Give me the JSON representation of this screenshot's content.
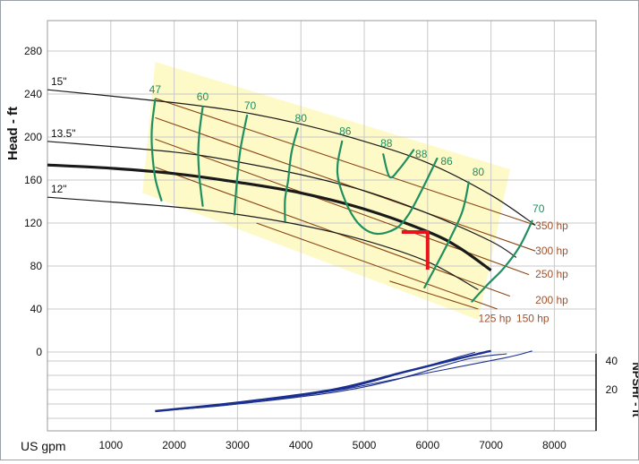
{
  "chart_data": {
    "type": "line",
    "title": "",
    "xlabel": "US gpm",
    "ylabel": "Head - ft",
    "y2label": "NPSHr - ft",
    "xlim": [
      0,
      8500
    ],
    "ylim": [
      -20,
      300
    ],
    "x_ticks": [
      1000,
      2000,
      3000,
      4000,
      5000,
      6000,
      7000,
      8000
    ],
    "y_ticks": [
      0,
      40,
      80,
      120,
      160,
      200,
      240,
      280
    ],
    "y2_ticks": [
      20,
      40
    ],
    "grid": true,
    "impeller_curves": [
      {
        "name": "15\"",
        "points": [
          [
            0,
            244
          ],
          [
            2000,
            232
          ],
          [
            3000,
            224
          ],
          [
            4000,
            212
          ],
          [
            5000,
            196
          ],
          [
            6000,
            176
          ],
          [
            7000,
            146
          ],
          [
            7700,
            118
          ]
        ]
      },
      {
        "name": "13.5\"",
        "points": [
          [
            0,
            196
          ],
          [
            2000,
            186
          ],
          [
            3000,
            177
          ],
          [
            4000,
            165
          ],
          [
            5000,
            150
          ],
          [
            6000,
            129
          ],
          [
            7000,
            103
          ],
          [
            7400,
            88
          ]
        ]
      },
      {
        "name": "",
        "points": [
          [
            0,
            174
          ],
          [
            1000,
            171
          ],
          [
            2000,
            166
          ],
          [
            3000,
            158
          ],
          [
            4000,
            148
          ],
          [
            5000,
            133
          ],
          [
            6000,
            112
          ],
          [
            6500,
            97
          ],
          [
            7000,
            76
          ]
        ]
      },
      {
        "name": "12\"",
        "points": [
          [
            0,
            144
          ],
          [
            2000,
            135
          ],
          [
            3000,
            128
          ],
          [
            4000,
            118
          ],
          [
            5000,
            104
          ],
          [
            6000,
            84
          ],
          [
            6800,
            58
          ]
        ]
      }
    ],
    "power_lines": [
      {
        "name": "350 hp",
        "points": [
          [
            1700,
            236
          ],
          [
            7700,
            118
          ]
        ]
      },
      {
        "name": "300 hp",
        "points": [
          [
            1700,
            218
          ],
          [
            7700,
            94
          ]
        ]
      },
      {
        "name": "250 hp",
        "points": [
          [
            1700,
            198
          ],
          [
            7600,
            72
          ]
        ]
      },
      {
        "name": "200 hp",
        "points": [
          [
            1700,
            172
          ],
          [
            7300,
            52
          ]
        ]
      },
      {
        "name": "150 hp",
        "points": [
          [
            3300,
            120
          ],
          [
            7100,
            40
          ]
        ]
      },
      {
        "name": "125 hp",
        "points": [
          [
            5400,
            66
          ],
          [
            6800,
            40
          ]
        ]
      }
    ],
    "power_labels": [
      {
        "text": "350 hp",
        "x": 7700,
        "y": 114
      },
      {
        "text": "300 hp",
        "x": 7700,
        "y": 91
      },
      {
        "text": "250 hp",
        "x": 7700,
        "y": 69
      },
      {
        "text": "200 hp",
        "x": 7700,
        "y": 45
      },
      {
        "text": "150 hp",
        "x": 7400,
        "y": 28
      },
      {
        "text": "125 hp",
        "x": 6800,
        "y": 28
      }
    ],
    "efficiency_contours": [
      {
        "name": "47",
        "points": [
          [
            1700,
            235
          ],
          [
            1650,
            210
          ],
          [
            1650,
            190
          ],
          [
            1700,
            162
          ],
          [
            1800,
            141
          ]
        ]
      },
      {
        "name": "60",
        "points": [
          [
            2450,
            228
          ],
          [
            2400,
            205
          ],
          [
            2380,
            185
          ],
          [
            2400,
            162
          ],
          [
            2450,
            136
          ]
        ]
      },
      {
        "name": "70",
        "points": [
          [
            3150,
            220
          ],
          [
            3050,
            190
          ],
          [
            3000,
            165
          ],
          [
            2950,
            128
          ]
        ]
      },
      {
        "name": "80",
        "points": [
          [
            3950,
            208
          ],
          [
            3850,
            185
          ],
          [
            3800,
            160
          ],
          [
            3750,
            142
          ],
          [
            3750,
            122
          ]
        ]
      },
      {
        "name": "86",
        "points": [
          [
            4650,
            196
          ],
          [
            4580,
            175
          ],
          [
            4600,
            158
          ],
          [
            4750,
            134
          ],
          [
            4950,
            117
          ],
          [
            5200,
            110
          ],
          [
            5500,
            115
          ],
          [
            5700,
            128
          ],
          [
            5920,
            152
          ],
          [
            6150,
            180
          ]
        ]
      },
      {
        "name": "88",
        "points": [
          [
            5300,
            184
          ],
          [
            5400,
            163
          ],
          [
            5550,
            170
          ],
          [
            5780,
            188
          ]
        ]
      },
      {
        "name": "80",
        "points": [
          [
            6650,
            158
          ],
          [
            6550,
            131
          ],
          [
            6350,
            105
          ],
          [
            6150,
            82
          ],
          [
            5950,
            60
          ]
        ]
      },
      {
        "name": "70",
        "points": [
          [
            7650,
            122
          ],
          [
            7450,
            98
          ],
          [
            7200,
            78
          ],
          [
            6950,
            63
          ],
          [
            6700,
            47
          ]
        ]
      }
    ],
    "efficiency_labels": [
      {
        "text": "47",
        "x": 1700,
        "y": 241
      },
      {
        "text": "60",
        "x": 2450,
        "y": 234
      },
      {
        "text": "70",
        "x": 3200,
        "y": 226
      },
      {
        "text": "80",
        "x": 4000,
        "y": 214
      },
      {
        "text": "86",
        "x": 4700,
        "y": 202
      },
      {
        "text": "88",
        "x": 5350,
        "y": 191
      },
      {
        "text": "88",
        "x": 5900,
        "y": 181
      },
      {
        "text": "86",
        "x": 6300,
        "y": 174
      },
      {
        "text": "80",
        "x": 6800,
        "y": 164
      },
      {
        "text": "70",
        "x": 7750,
        "y": 130
      }
    ],
    "operating_region": [
      [
        1700,
        270
      ],
      [
        7300,
        170
      ],
      [
        6800,
        30
      ],
      [
        1500,
        148
      ]
    ],
    "operating_point": {
      "x": 6000,
      "y": 110
    },
    "npshr_curves": [
      {
        "points": [
          [
            1700,
            5
          ],
          [
            3000,
            11
          ],
          [
            4500,
            20
          ],
          [
            5600,
            32
          ],
          [
            6800,
            45
          ],
          [
            7000,
            47
          ]
        ]
      },
      {
        "points": [
          [
            1700,
            5
          ],
          [
            3000,
            11
          ],
          [
            4500,
            19
          ],
          [
            5800,
            30
          ],
          [
            7200,
            42
          ],
          [
            7650,
            47
          ]
        ]
      },
      {
        "points": [
          [
            1700,
            5
          ],
          [
            3000,
            10
          ],
          [
            4500,
            18
          ],
          [
            5500,
            27
          ],
          [
            6600,
            41
          ],
          [
            7250,
            45
          ]
        ]
      },
      {
        "points": [
          [
            1700,
            5
          ],
          [
            3000,
            10
          ],
          [
            4600,
            20
          ],
          [
            5700,
            33
          ],
          [
            6500,
            43
          ],
          [
            6750,
            46
          ]
        ]
      }
    ],
    "colors": {
      "head_curve": "#1a1a1a",
      "power_line": "#8b4513",
      "power_label": "#a0522d",
      "efficiency": "#1f8f5f",
      "region": "#fdfac8",
      "operating_point": "#e8141b",
      "npshr": "#1b2f8f",
      "axis_text": "#111111"
    }
  }
}
